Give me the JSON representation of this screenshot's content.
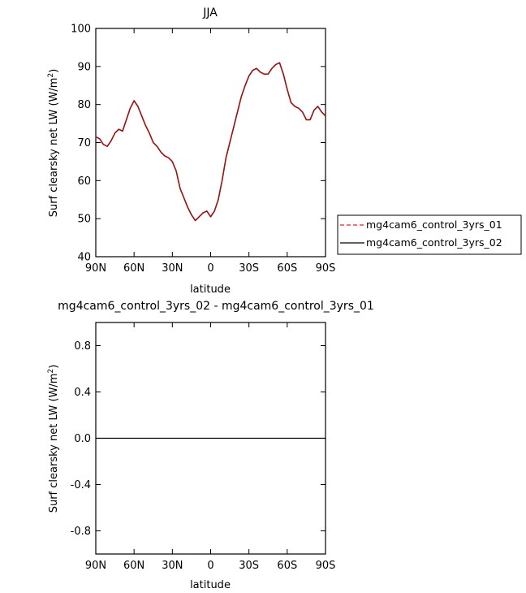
{
  "chart_data": [
    {
      "type": "line",
      "title": "JJA",
      "xlabel": "latitude",
      "ylabel_main": "Surf clearsky net LW (W/m",
      "ylabel_sup": "2",
      "ylabel_close": ")",
      "xlim": [
        90,
        -90
      ],
      "ylim": [
        40,
        100
      ],
      "x_ticks": [
        90,
        60,
        30,
        0,
        -30,
        -60,
        -90
      ],
      "x_tick_labels": [
        "90N",
        "60N",
        "30N",
        "0",
        "30S",
        "60S",
        "90S"
      ],
      "y_ticks": [
        40,
        50,
        60,
        70,
        80,
        90,
        100
      ],
      "y_tick_labels": [
        "40",
        "50",
        "60",
        "70",
        "80",
        "90",
        "100"
      ],
      "legend": [
        "mg4cam6_control_3yrs_01",
        "mg4cam6_control_3yrs_02"
      ],
      "legend_placement": "right",
      "colors": {
        "series_01": "#e8202a",
        "series_02": "#000000",
        "overlap": "#8b1a1a"
      },
      "x": [
        90,
        87,
        84,
        81,
        78,
        75,
        72,
        69,
        66,
        63,
        60,
        57,
        54,
        51,
        48,
        45,
        42,
        39,
        36,
        33,
        30,
        27,
        24,
        21,
        18,
        15,
        12,
        9,
        6,
        3,
        0,
        -3,
        -6,
        -9,
        -12,
        -15,
        -18,
        -21,
        -24,
        -27,
        -30,
        -33,
        -36,
        -39,
        -42,
        -45,
        -48,
        -51,
        -54,
        -57,
        -60,
        -63,
        -66,
        -69,
        -72,
        -75,
        -78,
        -81,
        -84,
        -87,
        -90
      ],
      "series": [
        {
          "name": "mg4cam6_control_3yrs_01",
          "values": [
            71.5,
            71,
            69.5,
            69,
            70.5,
            72.5,
            73.5,
            73,
            76,
            79,
            81,
            79.5,
            77,
            74.5,
            72.5,
            70,
            69,
            67.5,
            66.5,
            66,
            65,
            62.5,
            58,
            55.5,
            53,
            51,
            49.5,
            50.5,
            51.5,
            52,
            50.5,
            52,
            55,
            60,
            66,
            70,
            74,
            78,
            82,
            85,
            87.5,
            89,
            89.5,
            88.5,
            88,
            88,
            89.5,
            90.5,
            91,
            88,
            84,
            80.5,
            79.5,
            79,
            78,
            76,
            76,
            78.5,
            79.5,
            78,
            77
          ]
        },
        {
          "name": "mg4cam6_control_3yrs_02",
          "values": [
            71.5,
            71,
            69.5,
            69,
            70.5,
            72.5,
            73.5,
            73,
            76,
            79,
            81,
            79.5,
            77,
            74.5,
            72.5,
            70,
            69,
            67.5,
            66.5,
            66,
            65,
            62.5,
            58,
            55.5,
            53,
            51,
            49.5,
            50.5,
            51.5,
            52,
            50.5,
            52,
            55,
            60,
            66,
            70,
            74,
            78,
            82,
            85,
            87.5,
            89,
            89.5,
            88.5,
            88,
            88,
            89.5,
            90.5,
            91,
            88,
            84,
            80.5,
            79.5,
            79,
            78,
            76,
            76,
            78.5,
            79.5,
            78,
            77
          ]
        }
      ]
    },
    {
      "type": "line",
      "title": "mg4cam6_control_3yrs_02 - mg4cam6_control_3yrs_01",
      "xlabel": "latitude",
      "ylabel_main": "Surf clearsky net LW (W/m",
      "ylabel_sup": "2",
      "ylabel_close": ")",
      "xlim": [
        90,
        -90
      ],
      "ylim": [
        -1,
        1
      ],
      "x_ticks": [
        90,
        60,
        30,
        0,
        -30,
        -60,
        -90
      ],
      "x_tick_labels": [
        "90N",
        "60N",
        "30N",
        "0",
        "30S",
        "60S",
        "90S"
      ],
      "y_ticks": [
        -0.8,
        -0.4,
        0.0,
        0.4,
        0.8
      ],
      "y_tick_labels": [
        "-0.8",
        "-0.4",
        "0.0",
        "0.4",
        "0.8"
      ],
      "x": [
        90,
        -90
      ],
      "series": [
        {
          "values": [
            0,
            0
          ]
        }
      ]
    }
  ]
}
